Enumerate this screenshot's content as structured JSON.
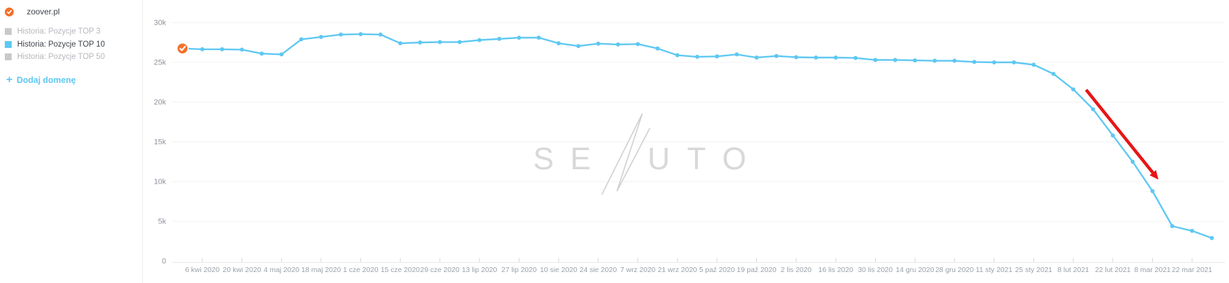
{
  "sidebar": {
    "domain": {
      "label": "zoover.pl",
      "badge_color": "#f3702a"
    },
    "legend": [
      {
        "label": "Historia: Pozycje TOP 3",
        "color": "#c9c9c9",
        "active": false
      },
      {
        "label": "Historia: Pozycje TOP 10",
        "color": "#5ec8f2",
        "active": true
      },
      {
        "label": "Historia: Pozycje TOP 50",
        "color": "#c9c9c9",
        "active": false
      }
    ],
    "add_domain": {
      "plus": "+",
      "label": "Dodaj domenę"
    }
  },
  "chart_data": {
    "type": "line",
    "title": "",
    "series": [
      {
        "name": "Historia: Pozycje TOP 10",
        "color": "#5ec8f2",
        "values": [
          26750,
          26650,
          26650,
          26600,
          26100,
          26000,
          27900,
          28200,
          28500,
          28550,
          28500,
          27400,
          27500,
          27550,
          27550,
          27800,
          27950,
          28100,
          28100,
          27400,
          27050,
          27350,
          27250,
          27300,
          26750,
          25900,
          25700,
          25750,
          26000,
          25600,
          25800,
          25650,
          25600,
          25600,
          25550,
          25300,
          25300,
          25250,
          25200,
          25200,
          25050,
          25000,
          25000,
          24700,
          23550,
          21600,
          19100,
          15800,
          12500,
          8800,
          4400,
          3800,
          2900
        ]
      }
    ],
    "x_tick_labels": [
      "6 kwi 2020",
      "20 kwi 2020",
      "4 maj 2020",
      "18 maj 2020",
      "1 cze 2020",
      "15 cze 2020",
      "29 cze 2020",
      "13 lip 2020",
      "27 lip 2020",
      "10 sie 2020",
      "24 sie 2020",
      "7 wrz 2020",
      "21 wrz 2020",
      "5 paź 2020",
      "19 paź 2020",
      "2 lis 2020",
      "16 lis 2020",
      "30 lis 2020",
      "14 gru 2020",
      "28 gru 2020",
      "11 sty 2021",
      "25 sty 2021",
      "8 lut 2021",
      "22 lut 2021",
      "8 mar 2021",
      "22 mar 2021"
    ],
    "y_ticks": [
      {
        "label": "30k",
        "value": 30000
      },
      {
        "label": "25k",
        "value": 25000
      },
      {
        "label": "20k",
        "value": 20000
      },
      {
        "label": "15k",
        "value": 15000
      },
      {
        "label": "10k",
        "value": 10000
      },
      {
        "label": "5k",
        "value": 5000
      },
      {
        "label": "0",
        "value": 0
      }
    ],
    "ylim": [
      0,
      30000
    ],
    "grid": "horizontal",
    "legend_position": "left-sidebar",
    "start_marker_color": "#f3702a",
    "annotation_arrow": {
      "color": "#e81516",
      "from": {
        "i": 45.65,
        "v": 21550
      },
      "to": {
        "i": 49.3,
        "v": 10250
      }
    },
    "watermark": "SENUTO"
  }
}
